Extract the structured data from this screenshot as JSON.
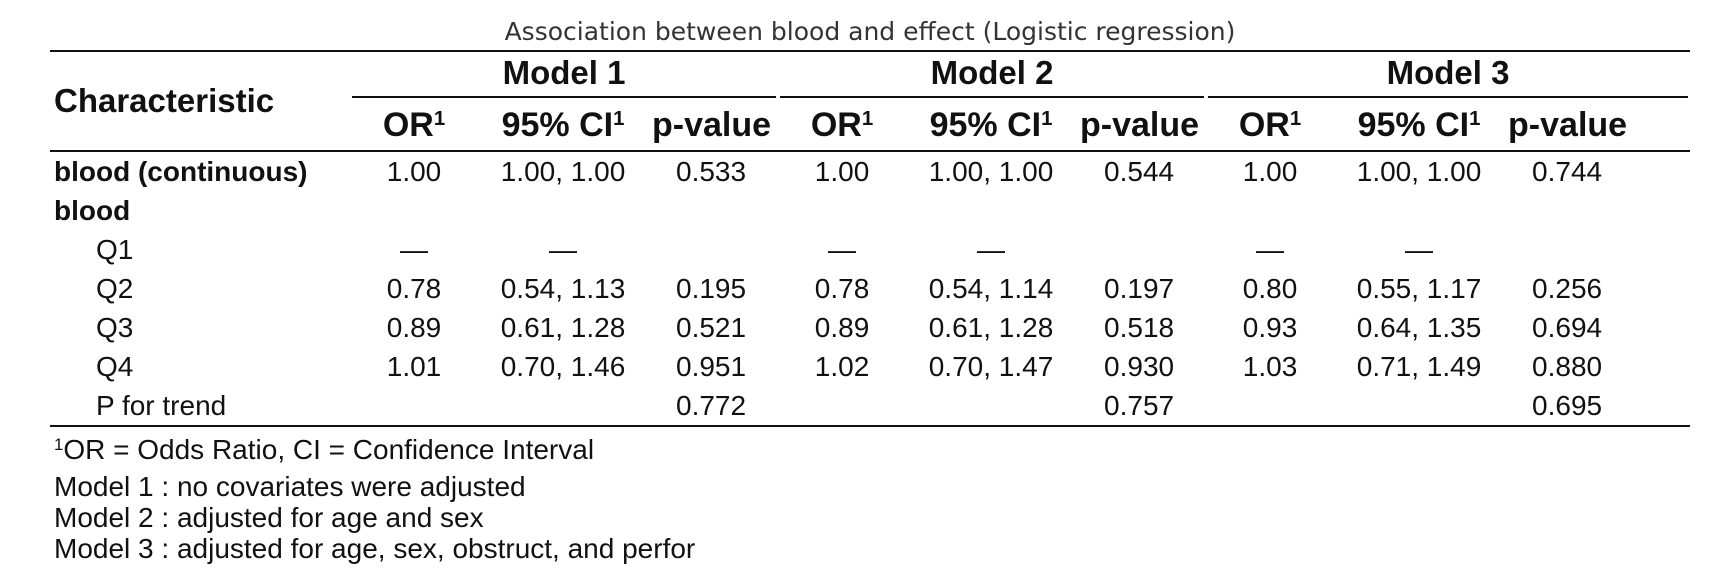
{
  "caption": "Association between blood and effect (Logistic regression)",
  "header": {
    "characteristic": "Characteristic",
    "models": [
      "Model 1",
      "Model 2",
      "Model 3"
    ],
    "or_label": "OR",
    "ci_label": "95% CI",
    "p_label": "p-value",
    "footnote_mark": "1"
  },
  "rows": [
    {
      "label": "blood (continuous)",
      "style": "bold",
      "cells": [
        "1.00",
        "1.00, 1.00",
        "0.533",
        "1.00",
        "1.00, 1.00",
        "0.544",
        "1.00",
        "1.00, 1.00",
        "0.744"
      ]
    },
    {
      "label": "blood",
      "style": "bold",
      "cells": [
        "",
        "",
        "",
        "",
        "",
        "",
        "",
        "",
        ""
      ]
    },
    {
      "label": "Q1",
      "style": "indent",
      "cells": [
        "—",
        "—",
        "",
        "—",
        "—",
        "",
        "—",
        "—",
        ""
      ]
    },
    {
      "label": "Q2",
      "style": "indent",
      "cells": [
        "0.78",
        "0.54, 1.13",
        "0.195",
        "0.78",
        "0.54, 1.14",
        "0.197",
        "0.80",
        "0.55, 1.17",
        "0.256"
      ]
    },
    {
      "label": "Q3",
      "style": "indent",
      "cells": [
        "0.89",
        "0.61, 1.28",
        "0.521",
        "0.89",
        "0.61, 1.28",
        "0.518",
        "0.93",
        "0.64, 1.35",
        "0.694"
      ]
    },
    {
      "label": "Q4",
      "style": "indent",
      "cells": [
        "1.01",
        "0.70, 1.46",
        "0.951",
        "1.02",
        "0.70, 1.47",
        "0.930",
        "1.03",
        "0.71, 1.49",
        "0.880"
      ]
    },
    {
      "label": "P for trend",
      "style": "indent",
      "cells": [
        "",
        "",
        "0.772",
        "",
        "",
        "0.757",
        "",
        "",
        "0.695"
      ]
    }
  ],
  "footnotes": {
    "mark": "1",
    "abbreviations": "OR = Odds Ratio, CI = Confidence Interval",
    "models": [
      "Model 1 : no covariates were adjusted",
      "Model 2 : adjusted for age and sex",
      "Model 3 : adjusted for age, sex, obstruct, and perfor"
    ]
  }
}
